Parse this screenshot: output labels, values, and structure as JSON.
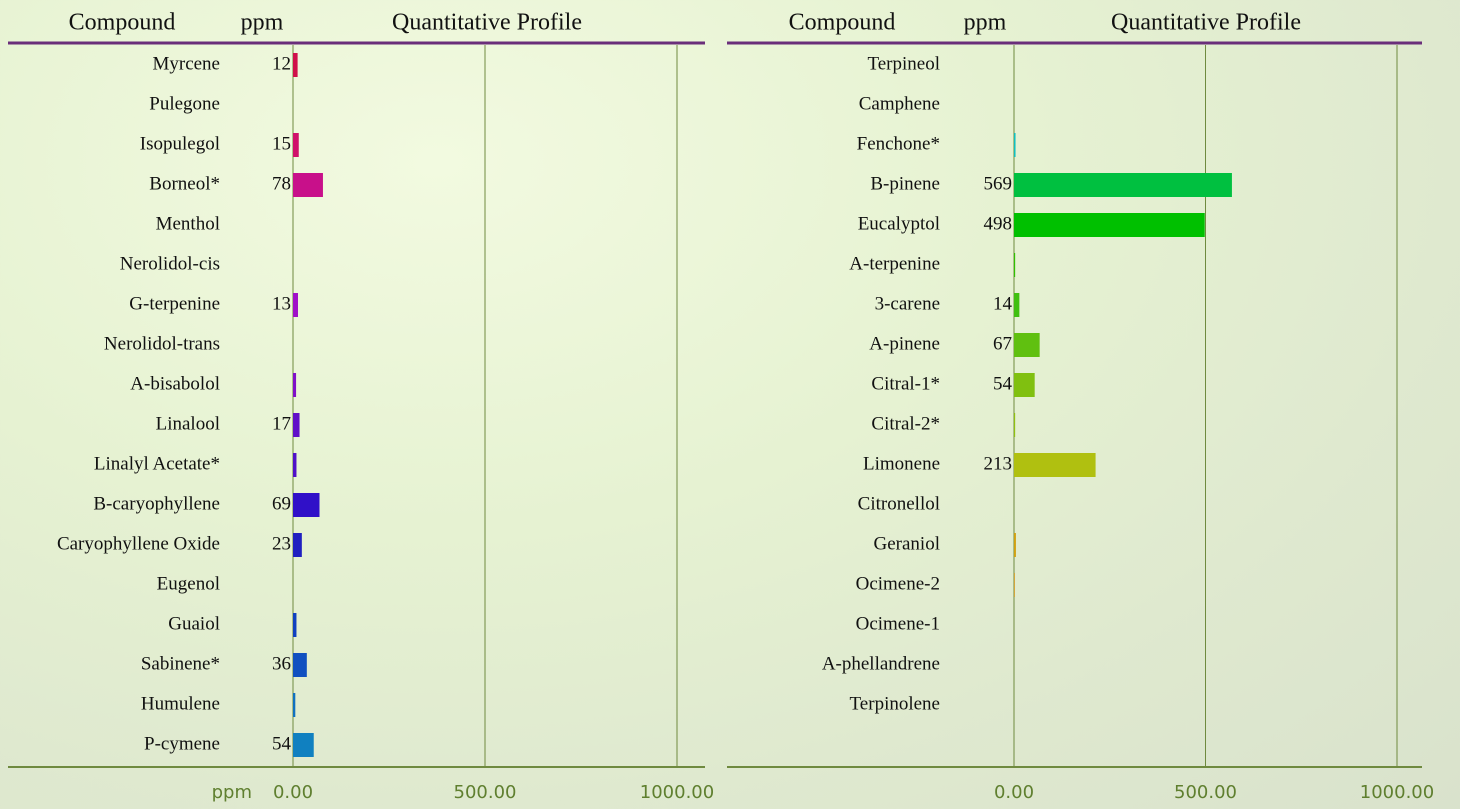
{
  "chart_data": [
    {
      "type": "bar",
      "orientation": "horizontal",
      "headers": [
        "Compound",
        "ppm",
        "Quantitative Profile"
      ],
      "x_label": "ppm",
      "categories": [
        "Myrcene",
        "Pulegone",
        "Isopulegol",
        "Borneol*",
        "Menthol",
        "Nerolidol-cis",
        "G-terpenine",
        "Nerolidol-trans",
        "A-bisabolol",
        "Linalool",
        "Linalyl Acetate*",
        "B-caryophyllene",
        "Caryophyllene Oxide",
        "Eugenol",
        "Guaiol",
        "Sabinene*",
        "Humulene",
        "P-cymene"
      ],
      "values": [
        12,
        0,
        15,
        78,
        0,
        0,
        13,
        0,
        8,
        17,
        9,
        69,
        23,
        0,
        9,
        36,
        6,
        54
      ],
      "value_labels": [
        "12",
        null,
        "15",
        "78",
        null,
        null,
        "13",
        null,
        null,
        "17",
        null,
        "69",
        "23",
        null,
        null,
        "36",
        null,
        "54"
      ],
      "colors": [
        "#d0104a",
        "#d0106a",
        "#d0106a",
        "#c8108a",
        "#b010b0",
        "#a010c0",
        "#a010c8",
        "#9010c8",
        "#8010c8",
        "#6010c8",
        "#5010c8",
        "#3010c8",
        "#2020c0",
        "#1530c0",
        "#1040c0",
        "#1050c0",
        "#1070c0",
        "#1080c0"
      ],
      "xlim": [
        0,
        1000
      ],
      "xticks": [
        {
          "value": 0,
          "label": "0.00"
        },
        {
          "value": 500,
          "label": "500.00"
        },
        {
          "value": 1000,
          "label": "1000.00"
        }
      ],
      "grid": true
    },
    {
      "type": "bar",
      "orientation": "horizontal",
      "headers": [
        "Compound",
        "ppm",
        "Quantitative Profile"
      ],
      "categories": [
        "Terpineol",
        "Camphene",
        "Fenchone*",
        "B-pinene",
        "Eucalyptol",
        "A-terpenine",
        "3-carene",
        "A-pinene",
        "Citral-1*",
        "Citral-2*",
        "Limonene",
        "Citronellol",
        "Geraniol",
        "Ocimene-2",
        "Ocimene-1",
        "A-phellandrene",
        "Terpinolene"
      ],
      "values": [
        0,
        0,
        4,
        569,
        498,
        3,
        14,
        67,
        54,
        3,
        213,
        0,
        5,
        2,
        0,
        0,
        0
      ],
      "value_labels": [
        null,
        null,
        null,
        "569",
        "498",
        null,
        "14",
        "67",
        "54",
        null,
        "213",
        null,
        null,
        null,
        null,
        null,
        null
      ],
      "colors": [
        "#10c0d0",
        "#10c0c8",
        "#10c0c0",
        "#00c040",
        "#00c000",
        "#30c000",
        "#40c010",
        "#60c010",
        "#80c010",
        "#90c010",
        "#b0c010",
        "#c0b010",
        "#d0a010",
        "#d09010",
        "#d08010",
        "#d07010",
        "#d06010"
      ],
      "xlim": [
        0,
        1000
      ],
      "xticks": [
        {
          "value": 0,
          "label": "0.00"
        },
        {
          "value": 500,
          "label": "500.00"
        },
        {
          "value": 1000,
          "label": "1000.00"
        }
      ],
      "grid": true
    }
  ]
}
